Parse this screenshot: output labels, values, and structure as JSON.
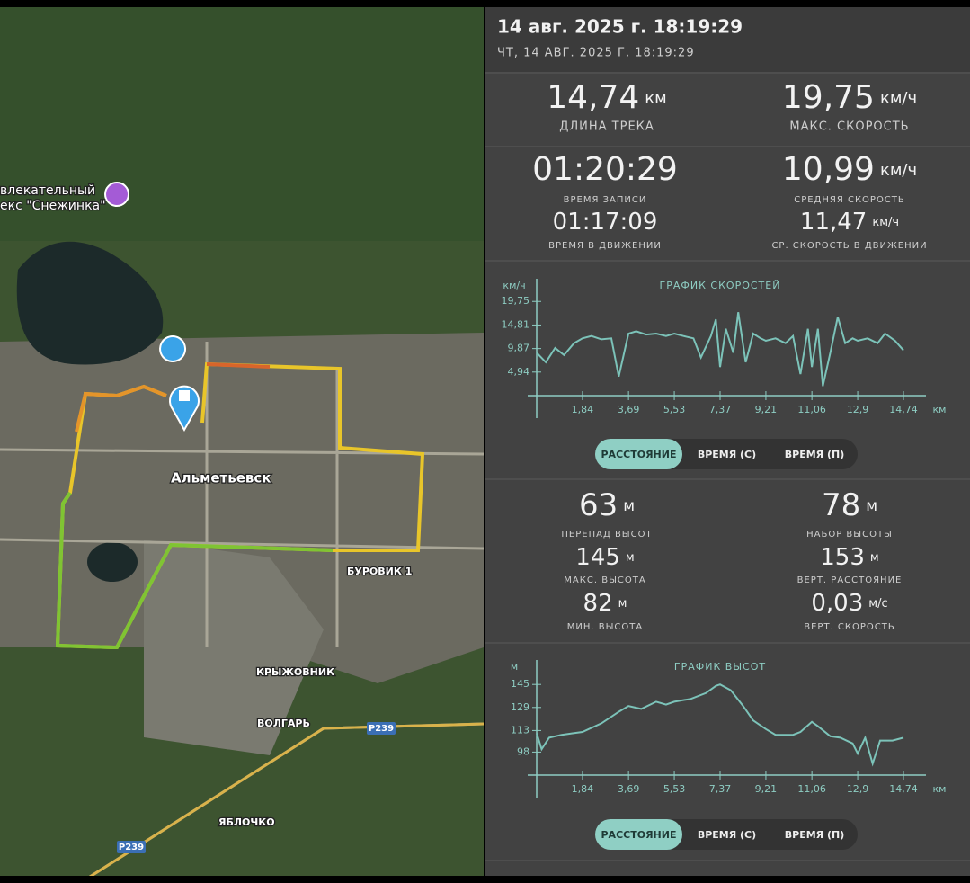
{
  "header": {
    "title": "14 авг. 2025 г. 18:19:29",
    "subtitle": "ЧТ, 14 АВГ. 2025 Г. 18:19:29"
  },
  "map": {
    "labels": [
      "влекательный",
      "екс \"Снежинка\"",
      "Альметьевск",
      "БУРОВИК 1",
      "КРЫЖОВНИК",
      "ВОЛГАРЬ",
      "ЯБЛОЧКО",
      "P239",
      "P239"
    ]
  },
  "stats_top": [
    {
      "value": "14,74",
      "unit": "км",
      "label": "ДЛИНА ТРЕКА"
    },
    {
      "value": "19,75",
      "unit": "км/ч",
      "label": "МАКС. СКОРОСТЬ"
    },
    {
      "value": "01:20:29",
      "label": "ВРЕМЯ ЗАПИСИ"
    },
    {
      "value": "10,99",
      "unit": "км/ч",
      "label": "СРЕДНЯЯ СКОРОСТЬ"
    },
    {
      "value": "01:17:09",
      "label": "ВРЕМЯ В ДВИЖЕНИИ"
    },
    {
      "value": "11,47",
      "unit": "км/ч",
      "label": "СР. СКОРОСТЬ В ДВИЖЕНИИ"
    }
  ],
  "stats_bottom": [
    {
      "value": "63",
      "unit": "м",
      "label": "ПЕРЕПАД ВЫСОТ"
    },
    {
      "value": "78",
      "unit": "м",
      "label": "НАБОР ВЫСОТЫ"
    },
    {
      "value": "145",
      "unit": "м",
      "label": "МАКС. ВЫСОТА"
    },
    {
      "value": "153",
      "unit": "м",
      "label": "ВЕРТ. РАССТОЯНИЕ"
    },
    {
      "value": "82",
      "unit": "м",
      "label": "МИН. ВЫСОТА"
    },
    {
      "value": "0,03",
      "unit": "м/с",
      "label": "ВЕРТ. СКОРОСТЬ"
    }
  ],
  "tabs": [
    "РАССТОЯНИЕ",
    "ВРЕМЯ (С)",
    "ВРЕМЯ (П)"
  ],
  "chart_data": [
    {
      "type": "line",
      "title": "ГРАФИК СКОРОСТЕЙ",
      "y_label": "км/ч",
      "x_label": "км",
      "color": "#7cc3b9",
      "x": [
        0,
        0.37,
        0.74,
        1.1,
        1.5,
        1.84,
        2.2,
        2.6,
        3.0,
        3.3,
        3.69,
        4.0,
        4.4,
        4.8,
        5.2,
        5.53,
        5.9,
        6.3,
        6.6,
        7.0,
        7.2,
        7.37,
        7.6,
        7.9,
        8.1,
        8.4,
        8.7,
        9.0,
        9.21,
        9.6,
        10.0,
        10.3,
        10.6,
        10.9,
        11.06,
        11.3,
        11.5,
        11.8,
        12.1,
        12.4,
        12.7,
        12.9,
        13.3,
        13.7,
        14.0,
        14.4,
        14.74
      ],
      "values": [
        9,
        7,
        10,
        8.5,
        11,
        12,
        12.5,
        11.8,
        12,
        4,
        13,
        13.5,
        12.8,
        13,
        12.5,
        13,
        12.5,
        12,
        8,
        12.5,
        16,
        6,
        14,
        9,
        17.5,
        7,
        13,
        12,
        11.5,
        12,
        11,
        12.5,
        4.5,
        14,
        6,
        14,
        2,
        9,
        16.5,
        11,
        12,
        11.5,
        12,
        11,
        13,
        11.5,
        9.5
      ],
      "xlim": [
        0,
        14.74
      ],
      "ylim": [
        0,
        23
      ],
      "xticks": [
        {
          "value": 1.84,
          "label": "1,84"
        },
        {
          "value": 3.69,
          "label": "3,69"
        },
        {
          "value": 5.53,
          "label": "5,53"
        },
        {
          "value": 7.37,
          "label": "7,37"
        },
        {
          "value": 9.21,
          "label": "9,21"
        },
        {
          "value": 11.06,
          "label": "11,06"
        },
        {
          "value": 12.9,
          "label": "12,9"
        },
        {
          "value": 14.74,
          "label": "14,74"
        }
      ],
      "yticks": [
        {
          "value": 4.94,
          "label": "4,94"
        },
        {
          "value": 9.87,
          "label": "9,87"
        },
        {
          "value": 14.81,
          "label": "14,81"
        },
        {
          "value": 19.75,
          "label": "19,75"
        }
      ]
    },
    {
      "type": "line",
      "title": "ГРАФИК ВЫСОТ",
      "y_label": "м",
      "x_label": "км",
      "color": "#7cc3b9",
      "x": [
        0,
        0.2,
        0.5,
        1.0,
        1.84,
        2.6,
        3.3,
        3.69,
        4.2,
        4.8,
        5.2,
        5.53,
        6.2,
        6.8,
        7.2,
        7.37,
        7.8,
        8.3,
        8.7,
        9.21,
        9.6,
        10.3,
        10.6,
        11.06,
        11.3,
        11.8,
        12.2,
        12.7,
        12.9,
        13.2,
        13.5,
        13.8,
        14.3,
        14.74
      ],
      "values": [
        111,
        100,
        108,
        110,
        112,
        118,
        126,
        130,
        128,
        133,
        131,
        133,
        135,
        139,
        144,
        145,
        141,
        130,
        120,
        114,
        110,
        110,
        112,
        119,
        116,
        109,
        108,
        104,
        97,
        108,
        90,
        106,
        106,
        108
      ],
      "xlim": [
        0,
        14.74
      ],
      "ylim": [
        82,
        157
      ],
      "xticks": [
        {
          "value": 1.84,
          "label": "1,84"
        },
        {
          "value": 3.69,
          "label": "3,69"
        },
        {
          "value": 5.53,
          "label": "5,53"
        },
        {
          "value": 7.37,
          "label": "7,37"
        },
        {
          "value": 9.21,
          "label": "9,21"
        },
        {
          "value": 11.06,
          "label": "11,06"
        },
        {
          "value": 12.9,
          "label": "12,9"
        },
        {
          "value": 14.74,
          "label": "14,74"
        }
      ],
      "yticks": [
        98,
        113,
        129,
        145
      ]
    }
  ]
}
